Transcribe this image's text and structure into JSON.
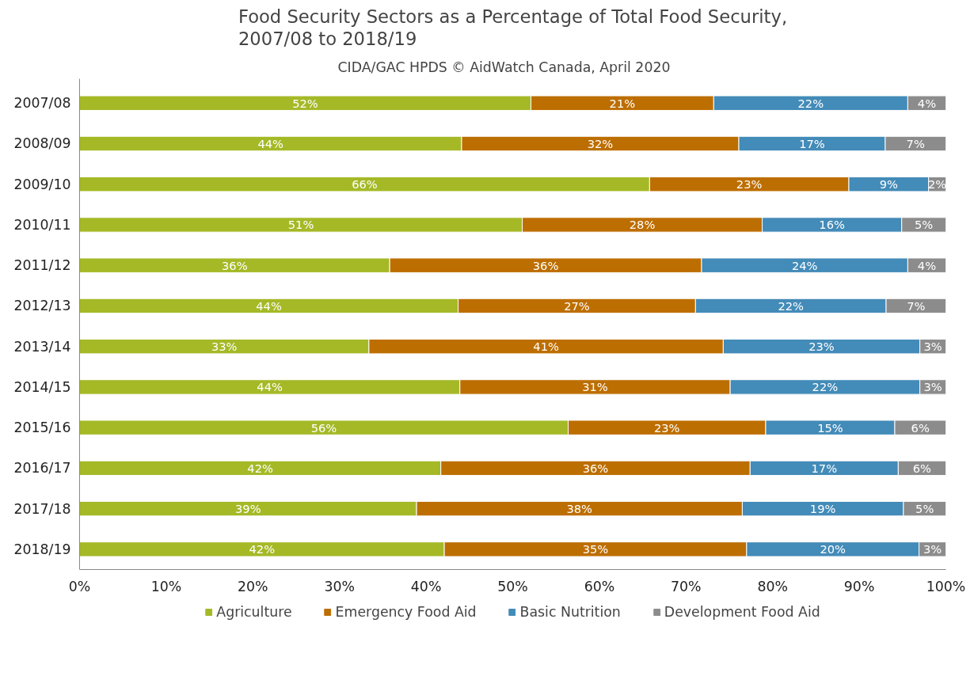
{
  "chart_data": {
    "type": "bar",
    "orientation": "horizontal",
    "stacked": true,
    "title": "Food Security Sectors as a Percentage of Total Food Security, 2007/08 to 2018/19",
    "subtitle": "CIDA/GAC HPDS     © AidWatch Canada, April 2020",
    "categories": [
      "2007/08",
      "2008/09",
      "2009/10",
      "2010/11",
      "2011/12",
      "2012/13",
      "2013/14",
      "2014/15",
      "2015/16",
      "2016/17",
      "2017/18",
      "2018/19"
    ],
    "series": [
      {
        "name": "Agriculture",
        "color": "#a5b927",
        "values": [
          52.1,
          44.1,
          65.8,
          51.1,
          35.8,
          43.7,
          33.4,
          43.9,
          56.4,
          41.7,
          38.9,
          42.1
        ],
        "value_labels": [
          "52%",
          "44%",
          "66%",
          "51%",
          "36%",
          "44%",
          "33%",
          "44%",
          "56%",
          "42%",
          "39%",
          "42%"
        ]
      },
      {
        "name": "Emergency Food Aid",
        "color": "#bd6e00",
        "values": [
          21.1,
          32.0,
          23.0,
          27.7,
          36.0,
          27.4,
          40.9,
          31.2,
          22.8,
          35.7,
          37.6,
          34.9
        ],
        "value_labels": [
          "21%",
          "32%",
          "23%",
          "28%",
          "36%",
          "27%",
          "41%",
          "31%",
          "23%",
          "36%",
          "38%",
          "35%"
        ]
      },
      {
        "name": "Basic Nutrition",
        "color": "#438bb8",
        "values": [
          22.4,
          16.9,
          9.2,
          16.1,
          23.8,
          22.0,
          22.7,
          21.9,
          14.9,
          17.1,
          18.6,
          19.9
        ],
        "value_labels": [
          "22%",
          "17%",
          "9%",
          "16%",
          "24%",
          "22%",
          "23%",
          "22%",
          "15%",
          "17%",
          "19%",
          "20%"
        ]
      },
      {
        "name": "Development Food Aid",
        "color": "#8c8c8c",
        "values": [
          4.4,
          7.0,
          2.0,
          5.1,
          4.4,
          6.9,
          3.0,
          3.0,
          5.9,
          5.5,
          4.9,
          3.1
        ],
        "value_labels": [
          "4%",
          "7%",
          "2%",
          "5%",
          "4%",
          "7%",
          "3%",
          "3%",
          "6%",
          "6%",
          "5%",
          "3%"
        ]
      }
    ],
    "xlim": [
      0,
      100
    ],
    "xticks": [
      {
        "value": 0,
        "label": "0%"
      },
      {
        "value": 10,
        "label": "10%"
      },
      {
        "value": 20,
        "label": "20%"
      },
      {
        "value": 30,
        "label": "30%"
      },
      {
        "value": 40,
        "label": "40%"
      },
      {
        "value": 50,
        "label": "50%"
      },
      {
        "value": 60,
        "label": "60%"
      },
      {
        "value": 70,
        "label": "70%"
      },
      {
        "value": 80,
        "label": "80%"
      },
      {
        "value": 90,
        "label": "90%"
      },
      {
        "value": 100,
        "label": "100%"
      }
    ],
    "legend": "bottom",
    "grid": false
  }
}
